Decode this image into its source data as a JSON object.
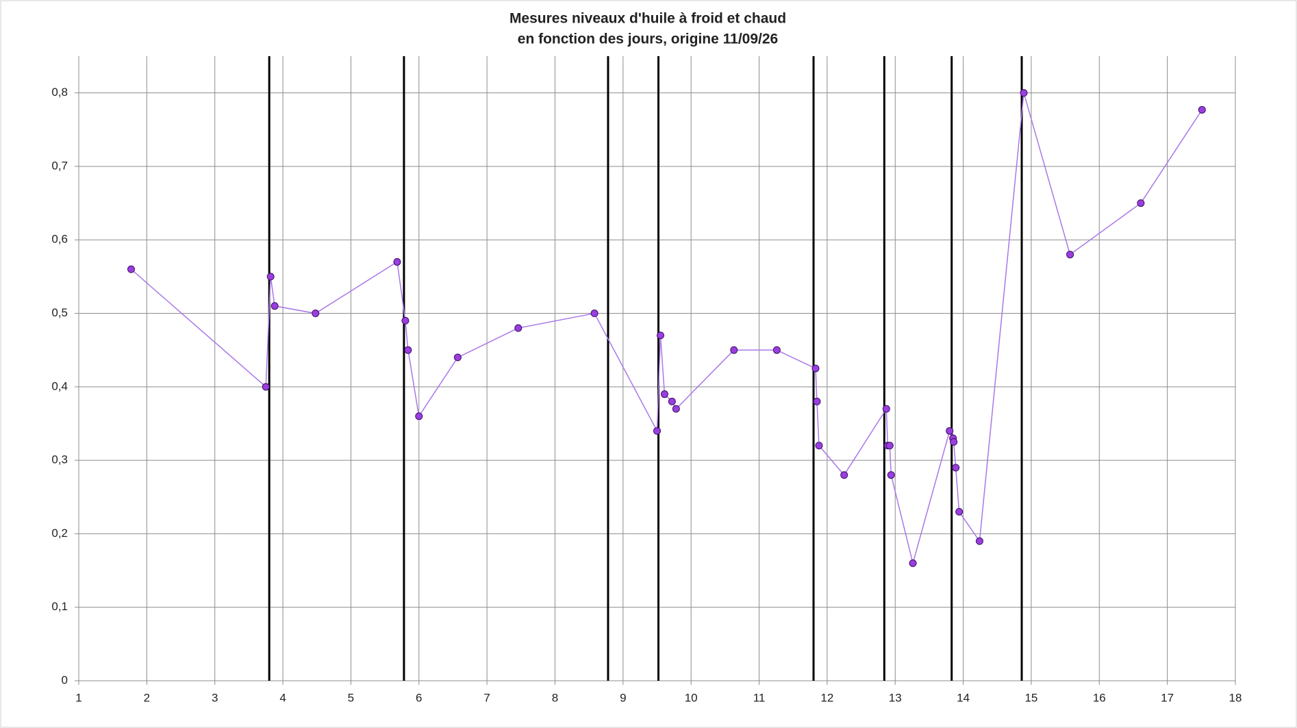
{
  "chart_data": {
    "type": "line",
    "title": "Mesures niveaux d'huile à froid et chaud",
    "subtitle": "en fonction des jours, origine 11/09/26",
    "x": [
      1.77,
      3.75,
      3.82,
      3.88,
      4.48,
      5.68,
      5.8,
      5.84,
      6.0,
      6.57,
      7.46,
      8.58,
      9.5,
      9.55,
      9.61,
      9.72,
      9.78,
      10.63,
      11.26,
      11.83,
      11.85,
      11.88,
      12.25,
      12.87,
      12.89,
      12.92,
      12.94,
      13.26,
      13.8,
      13.85,
      13.86,
      13.89,
      13.94,
      14.24,
      14.89,
      15.57,
      16.61,
      17.51
    ],
    "values": [
      0.56,
      0.4,
      0.55,
      0.51,
      0.5,
      0.57,
      0.49,
      0.45,
      0.36,
      0.44,
      0.48,
      0.5,
      0.34,
      0.47,
      0.39,
      0.38,
      0.37,
      0.45,
      0.45,
      0.425,
      0.38,
      0.32,
      0.28,
      0.37,
      0.32,
      0.32,
      0.28,
      0.16,
      0.34,
      0.33,
      0.325,
      0.29,
      0.23,
      0.19,
      0.8,
      0.58,
      0.65,
      0.777
    ],
    "color": "#9a3ee0",
    "line_color": "#a877e8",
    "marker_edge": "#3a1060",
    "vlines": [
      3.8,
      5.78,
      8.78,
      9.52,
      11.8,
      12.84,
      13.83,
      14.86
    ],
    "vline_color": "#000000",
    "xlim": [
      1,
      18
    ],
    "xticks": [
      1,
      2,
      3,
      4,
      5,
      6,
      7,
      8,
      9,
      10,
      11,
      12,
      13,
      14,
      15,
      16,
      17,
      18
    ],
    "ylim": [
      0,
      0.85
    ],
    "yticks": [
      0,
      {
        "value": 0.1,
        "label": "0,1"
      },
      {
        "value": 0.2,
        "label": "0,2"
      },
      {
        "value": 0.3,
        "label": "0,3"
      },
      {
        "value": 0.4,
        "label": "0,4"
      },
      {
        "value": 0.5,
        "label": "0,5"
      },
      {
        "value": 0.6,
        "label": "0,6"
      },
      {
        "value": 0.7,
        "label": "0,7"
      },
      {
        "value": 0.8,
        "label": "0,8"
      }
    ],
    "grid": true
  }
}
